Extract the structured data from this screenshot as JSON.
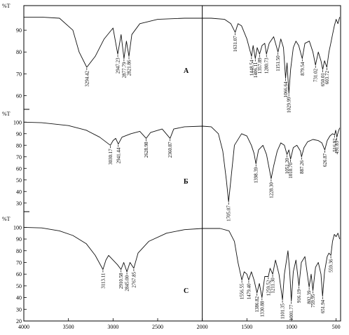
{
  "chart_data": {
    "type": "line",
    "x_axis": {
      "ticks": [
        4000,
        3500,
        3000,
        2500,
        2000,
        1500,
        1000,
        500
      ],
      "range": [
        4000,
        450
      ],
      "reversed": true
    },
    "grid": false,
    "panels": [
      {
        "letter": "A",
        "unit": "%T",
        "y_range": [
          55,
          100
        ],
        "y_ticks": [
          60,
          70,
          80,
          90
        ],
        "peaks": [
          {
            "x": 3294.42,
            "y": 73,
            "label": "3294.42"
          },
          {
            "x": 2947.23,
            "y": 79,
            "label": "2947.23"
          },
          {
            "x": 2877.79,
            "y": 77,
            "label": "2877.79"
          },
          {
            "x": 2821.86,
            "y": 78,
            "label": "2821.86"
          },
          {
            "x": 1631.07,
            "y": 89,
            "label": "1631.07"
          },
          {
            "x": 1448.54,
            "y": 78,
            "label": "1448.54"
          },
          {
            "x": 1406.11,
            "y": 77,
            "label": "1406.11"
          },
          {
            "x": 1357.89,
            "y": 79,
            "label": "1357.89"
          },
          {
            "x": 1280.73,
            "y": 79,
            "label": "1280.73"
          },
          {
            "x": 1151.5,
            "y": 80,
            "label": "1151.50"
          },
          {
            "x": 1066.64,
            "y": 68,
            "label": "1066.64"
          },
          {
            "x": 1029.99,
            "y": 61,
            "label": "1029.99"
          },
          {
            "x": 879.54,
            "y": 77,
            "label": "879.54"
          },
          {
            "x": 731.02,
            "y": 74,
            "label": "731.02"
          },
          {
            "x": 650.01,
            "y": 72,
            "label": "650.01"
          },
          {
            "x": 603.72,
            "y": 73,
            "label": "603.72"
          }
        ],
        "trace": [
          [
            4000,
            96
          ],
          [
            3800,
            96
          ],
          [
            3600,
            95.5
          ],
          [
            3450,
            90
          ],
          [
            3380,
            80
          ],
          [
            3294.42,
            73
          ],
          [
            3200,
            78
          ],
          [
            3100,
            86
          ],
          [
            3000,
            91
          ],
          [
            2947.23,
            79
          ],
          [
            2910,
            88
          ],
          [
            2877.79,
            77
          ],
          [
            2850,
            85
          ],
          [
            2821.86,
            78
          ],
          [
            2790,
            88
          ],
          [
            2700,
            93
          ],
          [
            2500,
            95
          ],
          [
            2200,
            95.5
          ],
          [
            1900,
            95.5
          ],
          [
            1750,
            95
          ],
          [
            1680,
            93
          ],
          [
            1631.07,
            89
          ],
          [
            1600,
            93
          ],
          [
            1560,
            92
          ],
          [
            1500,
            86
          ],
          [
            1448.54,
            78
          ],
          [
            1430,
            83
          ],
          [
            1406.11,
            77
          ],
          [
            1385,
            82
          ],
          [
            1357.89,
            79
          ],
          [
            1330,
            83
          ],
          [
            1300,
            84
          ],
          [
            1280.73,
            79
          ],
          [
            1250,
            84
          ],
          [
            1200,
            87
          ],
          [
            1151.5,
            80
          ],
          [
            1120,
            86
          ],
          [
            1090,
            82
          ],
          [
            1066.64,
            68
          ],
          [
            1050,
            75
          ],
          [
            1029.99,
            61
          ],
          [
            1010,
            72
          ],
          [
            980,
            82
          ],
          [
            950,
            85
          ],
          [
            920,
            83
          ],
          [
            879.54,
            77
          ],
          [
            850,
            84
          ],
          [
            800,
            85
          ],
          [
            760,
            80
          ],
          [
            731.02,
            74
          ],
          [
            700,
            80
          ],
          [
            670,
            76
          ],
          [
            650.01,
            72
          ],
          [
            630,
            76
          ],
          [
            603.72,
            73
          ],
          [
            580,
            80
          ],
          [
            560,
            84
          ],
          [
            540,
            88
          ],
          [
            520,
            92
          ],
          [
            500,
            95
          ],
          [
            480,
            93
          ],
          [
            460,
            96
          ]
        ]
      },
      {
        "letter": "Б",
        "unit": "%T",
        "y_range": [
          25,
          105
        ],
        "y_ticks": [
          30,
          40,
          50,
          60,
          70,
          80,
          90,
          100
        ],
        "peaks": [
          {
            "x": 3030.17,
            "y": 80,
            "label": "3030.17"
          },
          {
            "x": 2941.44,
            "y": 81,
            "label": "2941.44"
          },
          {
            "x": 2628.98,
            "y": 86,
            "label": "2628.98"
          },
          {
            "x": 2360.87,
            "y": 86,
            "label": "2360.87"
          },
          {
            "x": 1705.07,
            "y": 31,
            "label": "1705.07"
          },
          {
            "x": 1398.39,
            "y": 64,
            "label": "1398.39"
          },
          {
            "x": 1228.3,
            "y": 51,
            "label": "1228.30"
          },
          {
            "x": 1051.2,
            "y": 72,
            "label": "1051.20"
          },
          {
            "x": 1010.7,
            "y": 68,
            "label": "1010.70"
          },
          {
            "x": 887.26,
            "y": 70,
            "label": "887.26"
          },
          {
            "x": 626.87,
            "y": 76,
            "label": "626.87"
          },
          {
            "x": 516.92,
            "y": 89,
            "label": "516.92"
          },
          {
            "x": 491.83,
            "y": 87,
            "label": "491.83"
          }
        ],
        "trace": [
          [
            4000,
            100
          ],
          [
            3800,
            99.5
          ],
          [
            3500,
            97
          ],
          [
            3300,
            93
          ],
          [
            3150,
            87
          ],
          [
            3030.17,
            80
          ],
          [
            3000,
            84
          ],
          [
            2970,
            86
          ],
          [
            2941.44,
            81
          ],
          [
            2900,
            87
          ],
          [
            2800,
            90
          ],
          [
            2700,
            92
          ],
          [
            2628.98,
            86
          ],
          [
            2580,
            91
          ],
          [
            2450,
            94
          ],
          [
            2360.87,
            86
          ],
          [
            2320,
            94
          ],
          [
            2200,
            96
          ],
          [
            2000,
            96.5
          ],
          [
            1900,
            96
          ],
          [
            1820,
            90
          ],
          [
            1770,
            75
          ],
          [
            1730,
            50
          ],
          [
            1705.07,
            31
          ],
          [
            1680,
            50
          ],
          [
            1640,
            80
          ],
          [
            1560,
            90
          ],
          [
            1500,
            88
          ],
          [
            1450,
            80
          ],
          [
            1420,
            73
          ],
          [
            1398.39,
            64
          ],
          [
            1370,
            76
          ],
          [
            1320,
            80
          ],
          [
            1280,
            72
          ],
          [
            1250,
            60
          ],
          [
            1228.3,
            51
          ],
          [
            1200,
            62
          ],
          [
            1160,
            75
          ],
          [
            1120,
            82
          ],
          [
            1080,
            80
          ],
          [
            1051.2,
            72
          ],
          [
            1030,
            76
          ],
          [
            1010.7,
            68
          ],
          [
            980,
            78
          ],
          [
            940,
            80
          ],
          [
            900,
            75
          ],
          [
            887.26,
            70
          ],
          [
            860,
            78
          ],
          [
            820,
            83
          ],
          [
            760,
            85
          ],
          [
            700,
            84
          ],
          [
            660,
            82
          ],
          [
            626.87,
            76
          ],
          [
            600,
            84
          ],
          [
            570,
            88
          ],
          [
            540,
            90
          ],
          [
            516.92,
            89
          ],
          [
            505,
            93
          ],
          [
            491.83,
            87
          ],
          [
            475,
            92
          ],
          [
            460,
            95
          ]
        ]
      },
      {
        "letter": "C",
        "unit": "%T",
        "y_range": [
          20,
          105
        ],
        "y_ticks": [
          20,
          30,
          40,
          50,
          60,
          70,
          80,
          90,
          100
        ],
        "peaks": [
          {
            "x": 3113.11,
            "y": 64,
            "label": "3113.11"
          },
          {
            "x": 2910.58,
            "y": 64,
            "label": "2910.58"
          },
          {
            "x": 2845.0,
            "y": 62,
            "label": "2845.00"
          },
          {
            "x": 2767.85,
            "y": 65,
            "label": "2767.85"
          },
          {
            "x": 1556.55,
            "y": 55,
            "label": "1556.55"
          },
          {
            "x": 1479.4,
            "y": 55,
            "label": "1479.40"
          },
          {
            "x": 1386.82,
            "y": 44,
            "label": "1386.82"
          },
          {
            "x": 1330.88,
            "y": 40,
            "label": "1330.88"
          },
          {
            "x": 1259.52,
            "y": 58,
            "label": "1259.52"
          },
          {
            "x": 1211.3,
            "y": 60,
            "label": "1211.30"
          },
          {
            "x": 1101.35,
            "y": 38,
            "label": "1101.35"
          },
          {
            "x": 1001.77,
            "y": 37,
            "label": "1001.77"
          },
          {
            "x": 916.19,
            "y": 50,
            "label": "916.19"
          },
          {
            "x": 802.39,
            "y": 49,
            "label": "802.39"
          },
          {
            "x": 759.95,
            "y": 46,
            "label": "759.95"
          },
          {
            "x": 651.94,
            "y": 41,
            "label": "651.94"
          },
          {
            "x": 559.36,
            "y": 76,
            "label": "559.36"
          }
        ],
        "trace": [
          [
            4000,
            100
          ],
          [
            3800,
            99.5
          ],
          [
            3600,
            97
          ],
          [
            3450,
            93
          ],
          [
            3300,
            86
          ],
          [
            3200,
            76
          ],
          [
            3113.11,
            64
          ],
          [
            3080,
            72
          ],
          [
            3050,
            76
          ],
          [
            3000,
            72
          ],
          [
            2950,
            68
          ],
          [
            2910.58,
            64
          ],
          [
            2880,
            70
          ],
          [
            2845.0,
            62
          ],
          [
            2810,
            70
          ],
          [
            2767.85,
            65
          ],
          [
            2720,
            78
          ],
          [
            2600,
            88
          ],
          [
            2400,
            95
          ],
          [
            2200,
            98
          ],
          [
            2000,
            99
          ],
          [
            1800,
            99
          ],
          [
            1700,
            97
          ],
          [
            1640,
            88
          ],
          [
            1600,
            70
          ],
          [
            1556.55,
            55
          ],
          [
            1530,
            62
          ],
          [
            1500,
            60
          ],
          [
            1479.4,
            55
          ],
          [
            1450,
            62
          ],
          [
            1420,
            55
          ],
          [
            1386.82,
            44
          ],
          [
            1360,
            52
          ],
          [
            1330.88,
            40
          ],
          [
            1300,
            58
          ],
          [
            1259.52,
            58
          ],
          [
            1240,
            65
          ],
          [
            1211.3,
            60
          ],
          [
            1180,
            72
          ],
          [
            1140,
            60
          ],
          [
            1101.35,
            38
          ],
          [
            1080,
            60
          ],
          [
            1040,
            80
          ],
          [
            1020,
            62
          ],
          [
            1001.77,
            37
          ],
          [
            980,
            62
          ],
          [
            950,
            72
          ],
          [
            916.19,
            50
          ],
          [
            890,
            70
          ],
          [
            850,
            75
          ],
          [
            802.39,
            49
          ],
          [
            780,
            60
          ],
          [
            759.95,
            46
          ],
          [
            730,
            66
          ],
          [
            700,
            70
          ],
          [
            670,
            60
          ],
          [
            651.94,
            41
          ],
          [
            630,
            62
          ],
          [
            600,
            75
          ],
          [
            580,
            78
          ],
          [
            559.36,
            76
          ],
          [
            540,
            88
          ],
          [
            520,
            94
          ],
          [
            500,
            92
          ],
          [
            480,
            95
          ],
          [
            460,
            90
          ]
        ]
      }
    ]
  }
}
